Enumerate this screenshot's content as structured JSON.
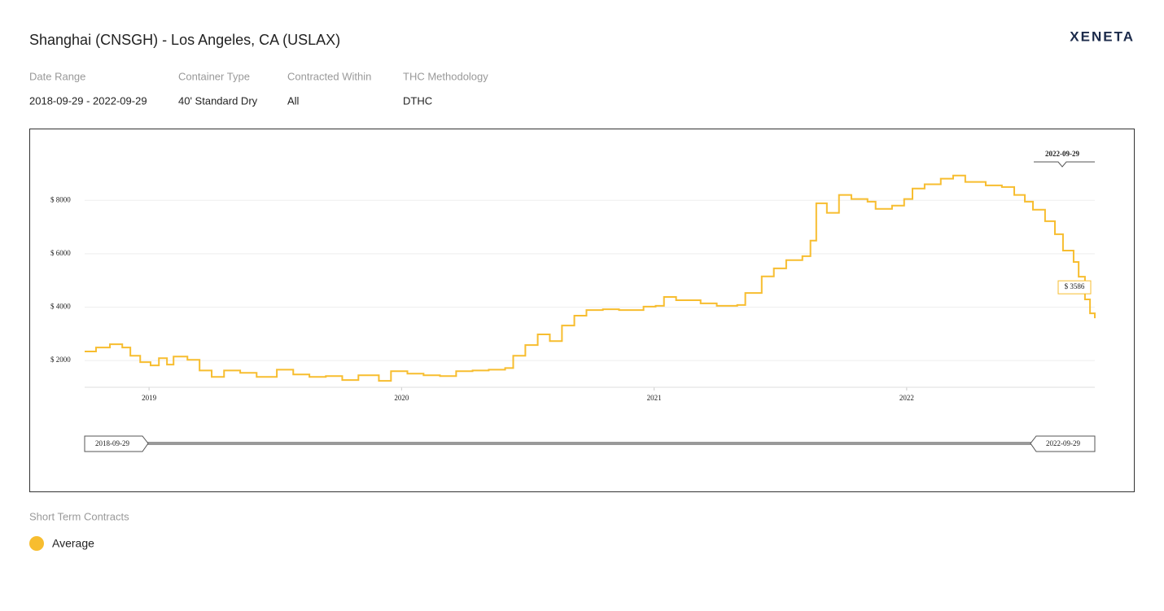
{
  "brand": "XENETA",
  "filters": [
    {
      "label": "Date Range",
      "value": "2018-09-29 - 2022-09-29"
    },
    {
      "label": "Container Type",
      "value": "40' Standard Dry"
    },
    {
      "label": "Contracted Within",
      "value": "All"
    },
    {
      "label": "THC Methodology",
      "value": "DTHC"
    }
  ],
  "legend_title": "Short Term Contracts",
  "range_selector": {
    "start": "2018-09-29",
    "end": "2022-09-29"
  },
  "crosshair_label": "2022-09-29",
  "chart_data": {
    "type": "line",
    "title": "Shanghai (CNSGH) - Los Angeles, CA (USLAX)",
    "x": [
      2018.745,
      2018.79,
      2018.845,
      2018.894,
      2018.926,
      2018.965,
      2019.006,
      2019.039,
      2019.071,
      2019.097,
      2019.152,
      2019.2,
      2019.248,
      2019.297,
      2019.361,
      2019.426,
      2019.506,
      2019.571,
      2019.635,
      2019.7,
      2019.765,
      2019.829,
      2019.91,
      2019.958,
      2020.023,
      2020.087,
      2020.152,
      2020.216,
      2020.281,
      2020.345,
      2020.41,
      2020.442,
      2020.49,
      2020.539,
      2020.587,
      2020.635,
      2020.684,
      2020.732,
      2020.797,
      2020.861,
      2020.958,
      2021.006,
      2021.039,
      2021.087,
      2021.184,
      2021.248,
      2021.329,
      2021.361,
      2021.426,
      2021.474,
      2021.523,
      2021.587,
      2021.619,
      2021.642,
      2021.684,
      2021.732,
      2021.781,
      2021.845,
      2021.877,
      2021.942,
      2021.99,
      2022.023,
      2022.071,
      2022.135,
      2022.184,
      2022.232,
      2022.313,
      2022.377,
      2022.426,
      2022.468,
      2022.5,
      2022.548,
      2022.587,
      2022.619,
      2022.661,
      2022.681,
      2022.706,
      2022.726,
      2022.745
    ],
    "series": [
      {
        "name": "Average",
        "color": "#f7bd2f",
        "values": [
          2340,
          2490,
          2610,
          2490,
          2180,
          1940,
          1820,
          2090,
          1850,
          2150,
          2030,
          1630,
          1390,
          1630,
          1540,
          1390,
          1660,
          1480,
          1390,
          1420,
          1270,
          1450,
          1240,
          1600,
          1510,
          1450,
          1420,
          1600,
          1630,
          1660,
          1720,
          2180,
          2580,
          2980,
          2730,
          3310,
          3680,
          3890,
          3920,
          3890,
          4020,
          4050,
          4380,
          4260,
          4140,
          4050,
          4080,
          4530,
          5150,
          5450,
          5760,
          5910,
          6490,
          7890,
          7530,
          8200,
          8050,
          7950,
          7680,
          7800,
          8050,
          8440,
          8600,
          8810,
          8930,
          8690,
          8560,
          8500,
          8200,
          7950,
          7650,
          7220,
          6730,
          6120,
          5690,
          5140,
          4290,
          3770,
          3586
        ]
      }
    ],
    "annotation": {
      "text": "$ 3586",
      "x": 2022.745,
      "y": 3586
    },
    "xlim": [
      2018.745,
      2022.745
    ],
    "xticks": [
      2019,
      2020,
      2021,
      2022
    ],
    "ylim": [
      1000,
      9500
    ],
    "yticks": [
      {
        "value": 2000,
        "label": "$ 2000"
      },
      {
        "value": 4000,
        "label": "$ 4000"
      },
      {
        "value": 6000,
        "label": "$ 6000"
      },
      {
        "value": 8000,
        "label": "$ 8000"
      }
    ],
    "grid": true,
    "step": true
  }
}
